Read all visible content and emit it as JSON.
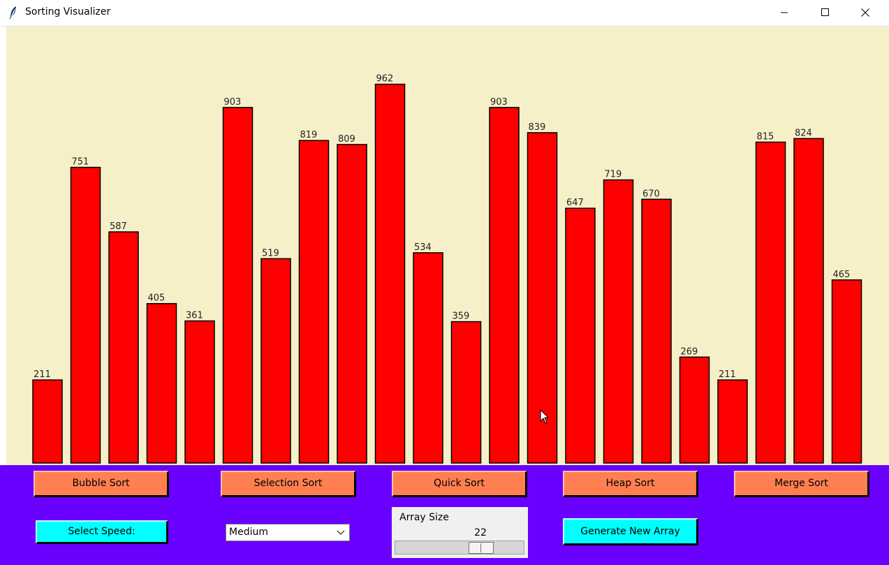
{
  "window": {
    "title": "Sorting Visualizer",
    "app_icon": "feather-icon",
    "controls": [
      "minimize-icon",
      "maximize-icon",
      "close-icon"
    ]
  },
  "chart_data": {
    "type": "bar",
    "values": [
      211,
      751,
      587,
      405,
      361,
      903,
      519,
      819,
      809,
      962,
      534,
      359,
      903,
      839,
      647,
      719,
      670,
      269,
      211,
      815,
      824,
      465
    ],
    "bar_color": "#ff0000",
    "background": "#f5f0c8"
  },
  "controls": {
    "background": "#6a00ff",
    "algorithms": [
      "Bubble Sort",
      "Selection Sort",
      "Quick Sort",
      "Heap Sort",
      "Merge Sort"
    ],
    "speed_button": "Select Speed:",
    "speed_selected": "Medium",
    "array_size_label": "Array Size",
    "array_size_value": "22",
    "array_size_fraction": 0.67,
    "generate_button": "Generate New Array",
    "colors": {
      "algo_button": "#ff7f50",
      "action_button": "#00ffff"
    }
  }
}
